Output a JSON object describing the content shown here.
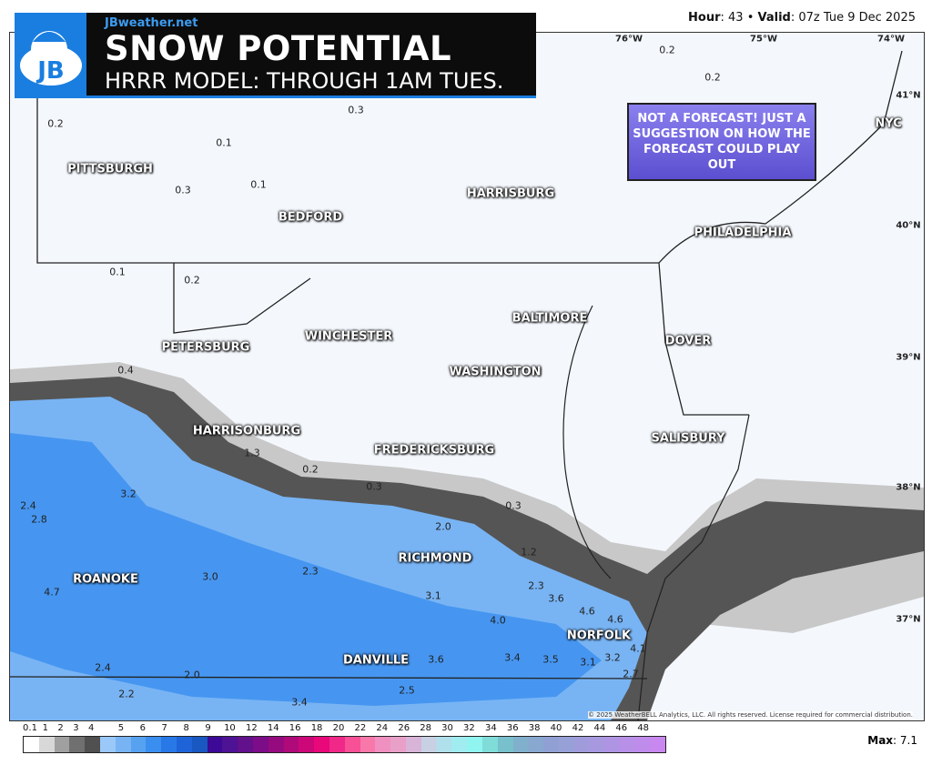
{
  "header": {
    "site": "JBweather.net",
    "logo_text": "JB",
    "title": "SNOW POTENTIAL",
    "subtitle": "HRRR MODEL: THROUGH 1AM TUES."
  },
  "valid": {
    "hour_label": "Hour",
    "hour": "43",
    "valid_label": "Valid",
    "valid_time": "07z Tue 9 Dec 2025"
  },
  "note": "NOT A FORECAST! JUST A SUGGESTION ON HOW THE FORECAST COULD PLAY OUT",
  "grid_labels": [
    "76°W",
    "75°W",
    "74°W",
    "41°N",
    "40°N",
    "39°N",
    "38°N",
    "37°N"
  ],
  "cities": [
    "PITTSBURGH",
    "BEDFORD",
    "HARRISBURG",
    "PHILADELPHIA",
    "NYC",
    "BALTIMORE",
    "WINCHESTER",
    "PETERSBURG",
    "DOVER",
    "WASHINGTON",
    "HARRISONBURG",
    "FREDERICKSBURG",
    "SALISBURY",
    "RICHMOND",
    "ROANOKE",
    "NORFOLK",
    "DANVILLE"
  ],
  "values": [
    "0.2",
    "0.1",
    "0.3",
    "0.2",
    "0.2",
    "0.3",
    "0.1",
    "0.1",
    "0.2",
    "0.4",
    "1.3",
    "0.2",
    "0.3",
    "0.3",
    "3.2",
    "2.4",
    "2.8",
    "2.0",
    "1.2",
    "4.7",
    "3.0",
    "2.3",
    "3.1",
    "2.3",
    "3.6",
    "4.6",
    "4.0",
    "4.6",
    "4.1",
    "2.4",
    "2.0",
    "3.6",
    "3.4",
    "3.5",
    "3.1",
    "3.2",
    "2.2",
    "3.4",
    "2.5",
    "2.7"
  ],
  "copyright": "© 2025 WeatherBELL Analytics, LLC. All rights reserved. License required for commercial distribution.",
  "watermark": "WEATHERBELL",
  "colorbar": {
    "labels": [
      "0.1",
      "1",
      "2",
      "3",
      "4",
      "5",
      "6",
      "7",
      "8",
      "9",
      "10",
      "12",
      "14",
      "16",
      "18",
      "20",
      "22",
      "24",
      "26",
      "28",
      "30",
      "32",
      "34",
      "36",
      "38",
      "40",
      "42",
      "44",
      "46",
      "48"
    ],
    "colors": [
      "#ffffff",
      "#d8d8d8",
      "#a0a0a0",
      "#707070",
      "#505050",
      "#9ac8f8",
      "#78b4f4",
      "#56a2f0",
      "#3a8ef0",
      "#2878e8",
      "#1e64d8",
      "#1858c0",
      "#3c0a96",
      "#4e1294",
      "#62108c",
      "#7c0c88",
      "#960a80",
      "#b00a7a",
      "#cc0878",
      "#e8087a",
      "#f02888",
      "#f85096",
      "#f878aa",
      "#f090c0",
      "#e8a0c8",
      "#d8b4d8",
      "#c8d0e4",
      "#b0e0ec",
      "#a0ecf0",
      "#90f4f0",
      "#80dcd8",
      "#78c0cc",
      "#80b0cc",
      "#88a8d0",
      "#90a0d4",
      "#98a0d8",
      "#a09cdc",
      "#a898e0",
      "#b094e4",
      "#b890e8",
      "#c08cec",
      "#c888f0"
    ]
  },
  "max": {
    "label": "Max",
    "value": "7.1"
  }
}
